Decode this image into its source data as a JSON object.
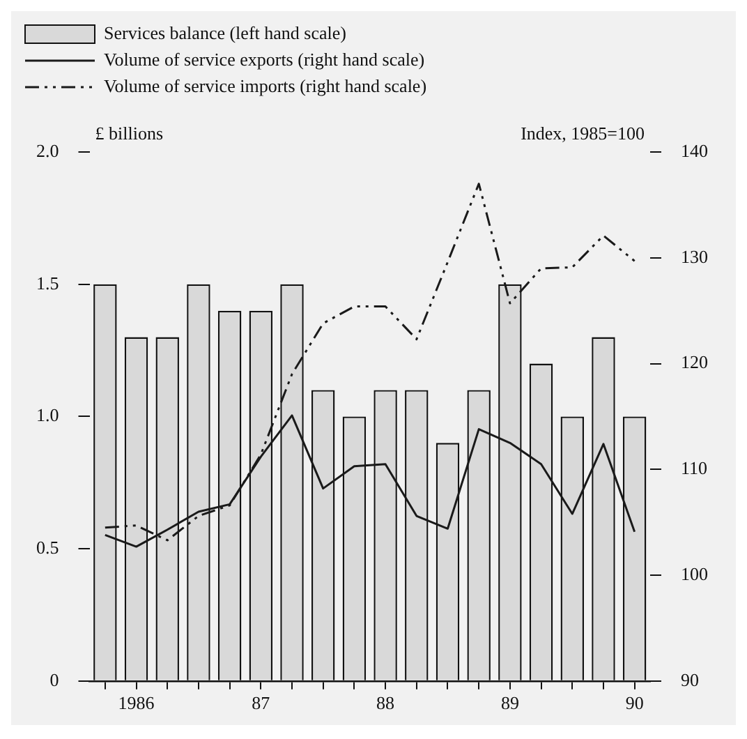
{
  "chart_data": {
    "type": "bar",
    "ylabel": "£ billions",
    "y2label": "Index, 1985=100",
    "categories": [
      null,
      "1986",
      null,
      null,
      null,
      "87",
      null,
      null,
      null,
      "88",
      null,
      null,
      null,
      "89",
      null,
      null,
      null,
      "90"
    ],
    "series": [
      {
        "name": "Services balance (left hand scale)",
        "color": "#d9d9d9",
        "values": [
          1.5,
          1.3,
          1.3,
          1.5,
          1.4,
          1.4,
          1.5,
          1.1,
          1.0,
          1.1,
          1.1,
          0.9,
          1.1,
          1.5,
          1.2,
          1.0,
          1.3,
          1.0
        ]
      },
      {
        "name": "Volume of service exports (right hand scale)",
        "type": "line",
        "axis": "y2",
        "color": "#1a1a1a",
        "line_style": "solid",
        "values": [
          103.8,
          102.7,
          104.3,
          106.0,
          106.7,
          111.2,
          115.1,
          108.2,
          110.3,
          110.5,
          105.6,
          104.4,
          113.8,
          112.5,
          110.5,
          105.8,
          112.4,
          104.1
        ]
      },
      {
        "name": "Volume of service imports (right hand scale)",
        "type": "line",
        "axis": "y2",
        "color": "#1a1a1a",
        "line_style": "dashed",
        "values": [
          104.5,
          104.7,
          103.3,
          105.6,
          106.6,
          111.4,
          119.0,
          123.8,
          125.4,
          125.4,
          122.3,
          129.6,
          137.0,
          125.7,
          129.0,
          129.1,
          132.1,
          129.7
        ]
      }
    ],
    "ylim": [
      0,
      2.0
    ],
    "yticks": [
      {
        "value": 0,
        "label": "0"
      },
      0.5,
      {
        "value": 1.0,
        "label": "1.0"
      },
      1.5,
      {
        "value": 2.0,
        "label": "2.0"
      }
    ],
    "y2lim": [
      90,
      140
    ],
    "y2ticks": [
      90,
      100,
      110,
      120,
      130,
      140
    ],
    "grid": false,
    "legend": "top left",
    "marker": "none"
  }
}
